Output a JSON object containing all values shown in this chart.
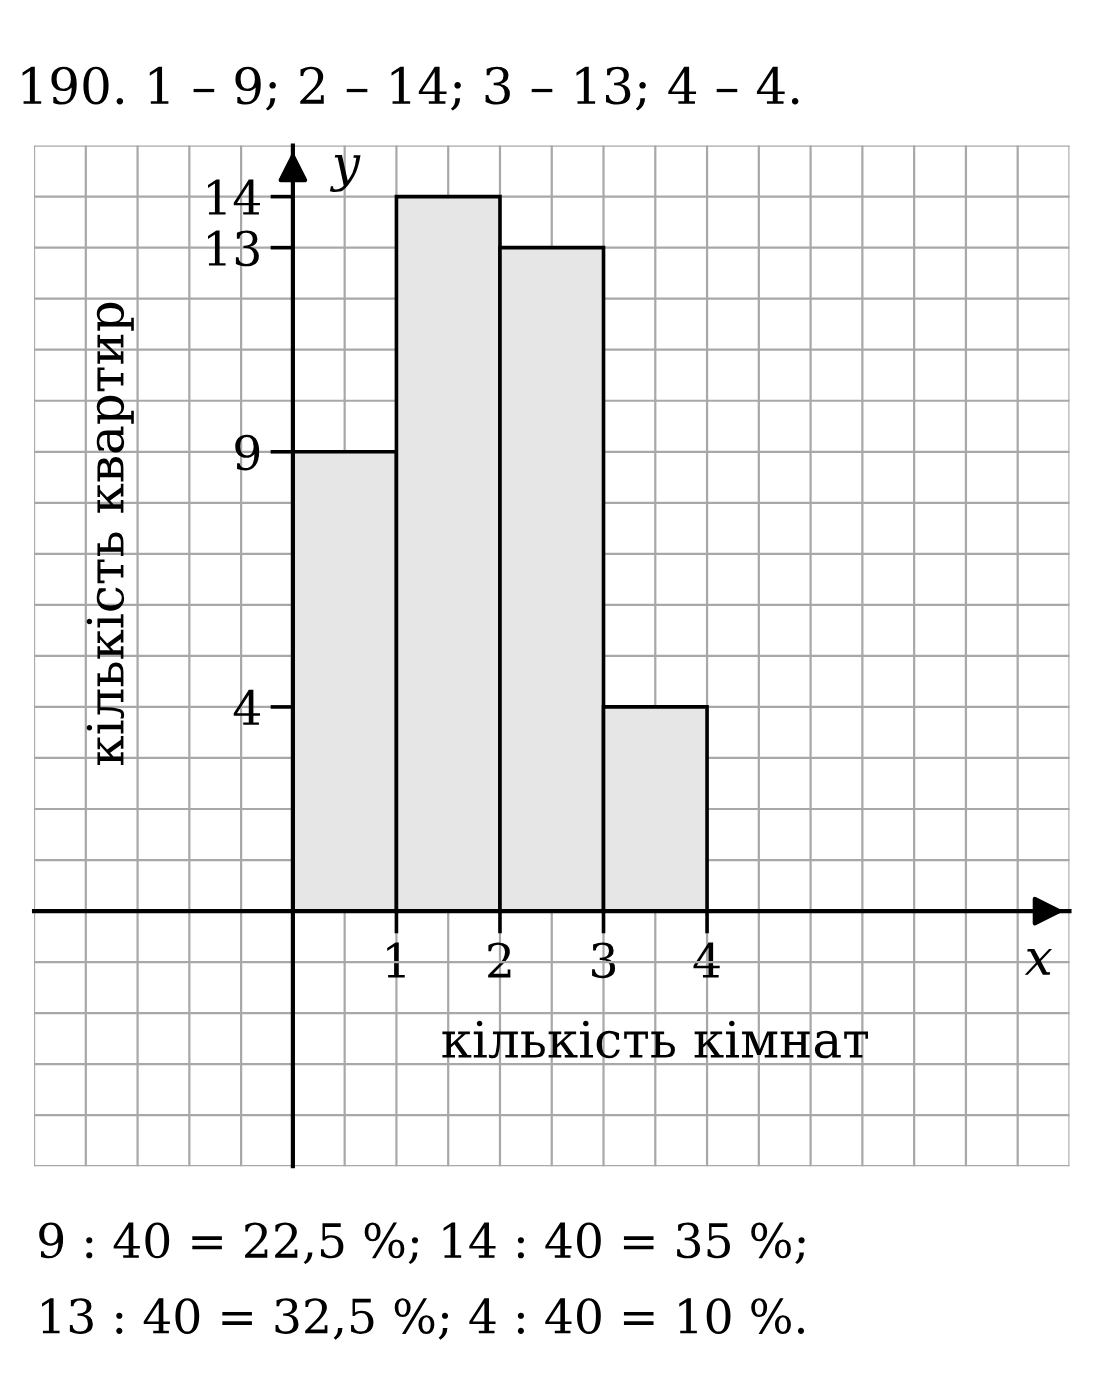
{
  "chart_data": {
    "type": "histogram",
    "title": "190. 1 – 9; 2 – 14; 3 – 13; 4 – 4.",
    "xlabel": "кількість кімнат",
    "ylabel": "кількість квартир",
    "bins": [
      0,
      1,
      2,
      3,
      4
    ],
    "values": [
      9,
      14,
      13,
      4
    ],
    "color": "#e6e6e6",
    "xlim": [
      -2.5,
      7.5
    ],
    "xticks": [
      {
        "value": -2.5,
        "label": null
      },
      {
        "value": -2,
        "label": null
      },
      {
        "value": -1.5,
        "label": null
      },
      {
        "value": -1,
        "label": null
      },
      {
        "value": -0.5,
        "label": null
      },
      {
        "value": 0,
        "label": null
      },
      {
        "value": 0.5,
        "label": null
      },
      1,
      {
        "value": 1.5,
        "label": null
      },
      2,
      {
        "value": 2.5,
        "label": null
      },
      3,
      {
        "value": 3.5,
        "label": null
      },
      4,
      {
        "value": 4.5,
        "label": null
      },
      {
        "value": 5,
        "label": null
      },
      {
        "value": 5.5,
        "label": null
      },
      {
        "value": 6,
        "label": null
      },
      {
        "value": 6.5,
        "label": null
      },
      {
        "value": 7,
        "label": null
      },
      {
        "value": 7.5,
        "label": null
      }
    ],
    "ylim": [
      -5,
      15
    ],
    "yticks": [
      {
        "value": -5,
        "label": null
      },
      {
        "value": -4,
        "label": null
      },
      {
        "value": -3,
        "label": null
      },
      {
        "value": -2,
        "label": null
      },
      {
        "value": -1,
        "label": null
      },
      {
        "value": 0,
        "label": null
      },
      {
        "value": 1,
        "label": null
      },
      {
        "value": 2,
        "label": null
      },
      {
        "value": 3,
        "label": null
      },
      4,
      {
        "value": 5,
        "label": null
      },
      {
        "value": 6,
        "label": null
      },
      {
        "value": 7,
        "label": null
      },
      {
        "value": 8,
        "label": null
      },
      9,
      {
        "value": 10,
        "label": null
      },
      {
        "value": 11,
        "label": null
      },
      {
        "value": 12,
        "label": null
      },
      13,
      14,
      {
        "value": 15,
        "label": null
      }
    ],
    "grid": true,
    "annotations": [
      "x",
      "y",
      "9 : 40 = 22,5 %; 14 : 40 = 35 %;",
      "13 : 40 = 32,5 %; 4 : 40 = 10 %."
    ]
  }
}
